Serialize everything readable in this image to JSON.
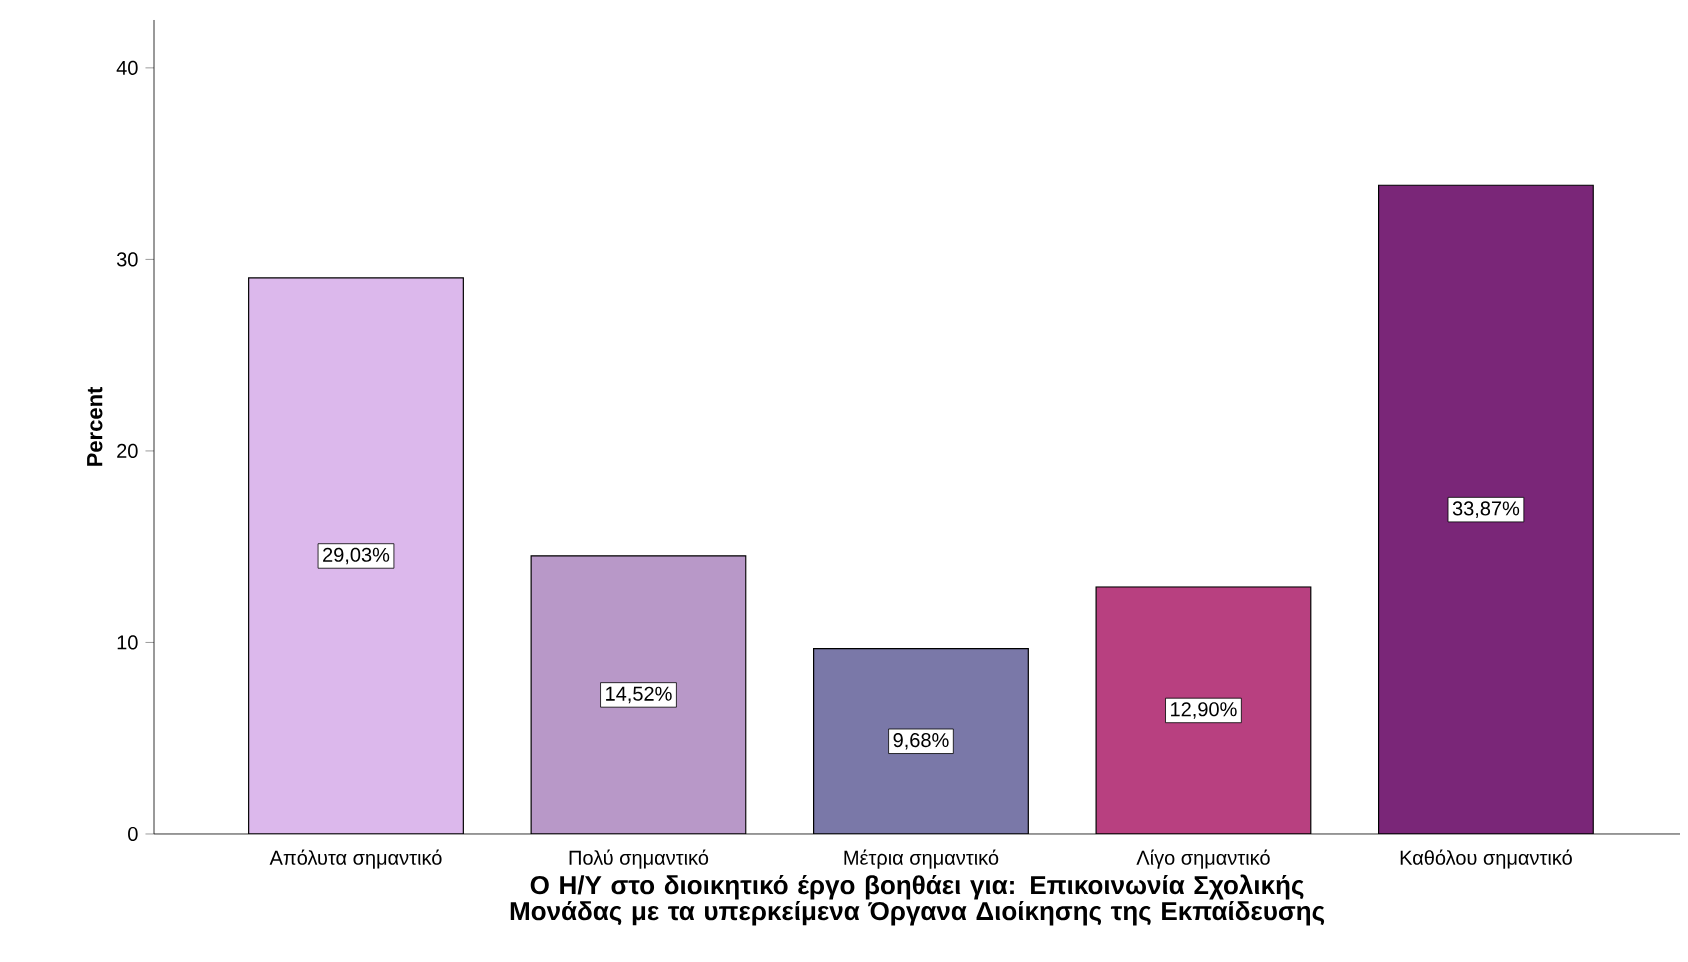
{
  "chart_data": {
    "type": "bar",
    "xlabel": "Ο Η/Υ στο διοικητικό έργο βοηθάει για: Επικοινωνία Σχολικής Μονάδας με τα υπερκείμενα Όργανα Διοίκησης της Εκπαίδευσης",
    "ylabel": "Percent",
    "categories": [
      "Απόλυτα σημαντικό",
      "Πολύ σημαντικό",
      "Μέτρια σημαντικό",
      "Λίγο σημαντικό",
      "Καθόλου σημαντικό"
    ],
    "values": [
      29.03,
      14.52,
      9.68,
      12.9,
      33.87
    ],
    "value_labels": [
      "29,03%",
      "14,52%",
      "9,68%",
      "12,90%",
      "33,87%"
    ],
    "colors": [
      "#dcb8ec",
      "#b898c8",
      "#7a78a8",
      "#b84080",
      "#7a2678"
    ],
    "ylim": [
      0,
      42.5
    ],
    "yticks": [
      0,
      10,
      20,
      30,
      40
    ],
    "grid": false
  }
}
